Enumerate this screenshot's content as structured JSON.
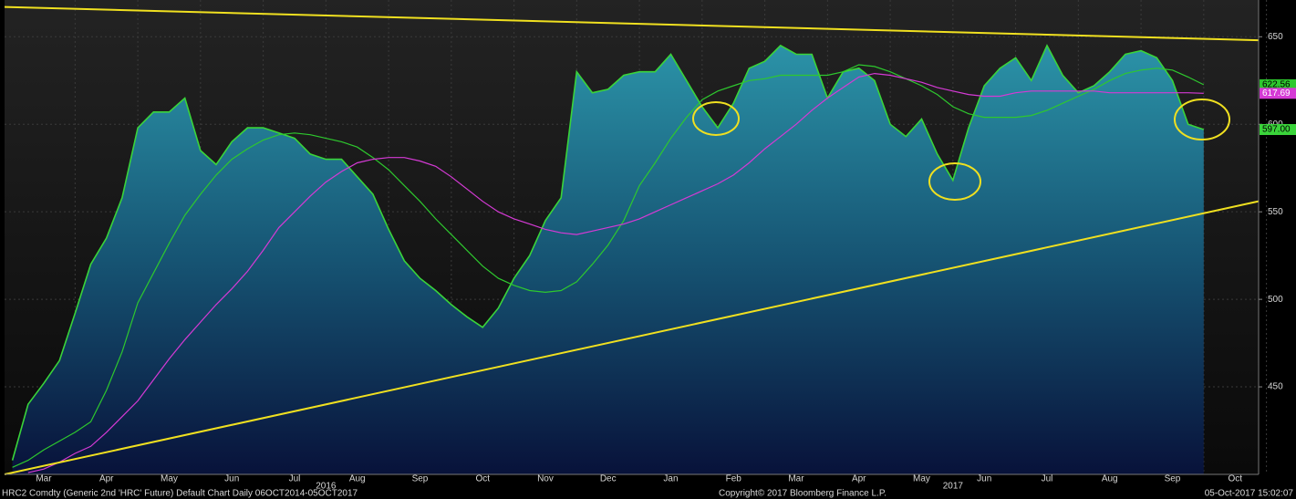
{
  "chart_data": {
    "type": "area",
    "categories": [
      null,
      null,
      "Mar",
      null,
      null,
      null,
      "Apr",
      null,
      null,
      null,
      "May",
      null,
      null,
      null,
      "Jun",
      null,
      null,
      null,
      "Jul",
      null,
      null,
      null,
      "Aug",
      null,
      null,
      null,
      "Sep",
      null,
      null,
      null,
      "Oct",
      null,
      null,
      null,
      "Nov",
      null,
      null,
      null,
      "Dec",
      null,
      null,
      null,
      "Jan",
      null,
      null,
      null,
      "Feb",
      null,
      null,
      null,
      "Mar",
      null,
      null,
      null,
      "Apr",
      null,
      null,
      null,
      "May",
      null,
      null,
      null,
      "Jun",
      null,
      null,
      null,
      "Jul",
      null,
      null,
      null,
      "Aug",
      null,
      null,
      null,
      "Sep",
      null,
      null,
      null,
      "Oct",
      null
    ],
    "years": [
      {
        "label": "2016",
        "category": 20
      },
      {
        "label": "2017",
        "category": 60
      }
    ],
    "ylim": [
      400,
      671
    ],
    "yticks": [
      450,
      500,
      550,
      600,
      650
    ],
    "grid": true,
    "series": [
      {
        "color": "#3ad43a",
        "fill": true,
        "values": [
          408,
          440,
          452,
          465,
          492,
          520,
          535,
          558,
          598,
          607,
          607,
          615,
          585,
          577,
          590,
          598,
          598,
          595,
          592,
          583,
          580,
          580,
          570,
          560,
          540,
          522,
          512,
          505,
          497,
          490,
          484,
          495,
          512,
          525,
          545,
          558,
          630,
          618,
          620,
          628,
          630,
          630,
          640,
          625,
          610,
          598,
          612,
          632,
          636,
          645,
          640,
          640,
          615,
          630,
          632,
          625,
          600,
          593,
          603,
          583,
          568,
          598,
          622,
          632,
          638,
          625,
          645,
          628,
          618,
          622,
          630,
          640,
          642,
          638,
          625,
          600,
          597,
          null,
          null,
          null
        ],
        "value_labels": [
          null,
          null,
          null,
          null,
          null,
          null,
          null,
          null,
          null,
          null,
          null,
          null,
          null,
          null,
          null,
          null,
          null,
          null,
          null,
          null,
          null,
          null,
          null,
          null,
          null,
          null,
          null,
          null,
          null,
          null,
          null,
          null,
          null,
          null,
          null,
          null,
          null,
          null,
          null,
          null,
          null,
          null,
          null,
          null,
          null,
          null,
          null,
          null,
          null,
          null,
          null,
          null,
          null,
          null,
          null,
          null,
          null,
          null,
          null,
          null,
          null,
          null,
          null,
          null,
          null,
          null,
          null,
          null,
          null,
          null,
          null,
          null,
          null,
          null,
          null,
          null,
          "597.00",
          null,
          null,
          null
        ]
      },
      {
        "color": "#2ec82e",
        "fill": false,
        "values": [
          404,
          408,
          414,
          419,
          424,
          430,
          448,
          470,
          498,
          515,
          532,
          548,
          560,
          571,
          580,
          586,
          591,
          594,
          595,
          594,
          592,
          590,
          587,
          581,
          574,
          565,
          556,
          546,
          537,
          528,
          519,
          512,
          508,
          505,
          504,
          505,
          510,
          520,
          531,
          545,
          565,
          578,
          592,
          604,
          614,
          619,
          622,
          625,
          626,
          628,
          628,
          628,
          628,
          630,
          634,
          633,
          630,
          626,
          622,
          617,
          610,
          606,
          604,
          604,
          604,
          605,
          608,
          612,
          616,
          620,
          625,
          629,
          631,
          632,
          631,
          627,
          622.56,
          null,
          null,
          null
        ],
        "value_labels": [
          null,
          null,
          null,
          null,
          null,
          null,
          null,
          null,
          null,
          null,
          null,
          null,
          null,
          null,
          null,
          null,
          null,
          null,
          null,
          null,
          null,
          null,
          null,
          null,
          null,
          null,
          null,
          null,
          null,
          null,
          null,
          null,
          null,
          null,
          null,
          null,
          null,
          null,
          null,
          null,
          null,
          null,
          null,
          null,
          null,
          null,
          null,
          null,
          null,
          null,
          null,
          null,
          null,
          null,
          null,
          null,
          null,
          null,
          null,
          null,
          null,
          null,
          null,
          null,
          null,
          null,
          null,
          null,
          null,
          null,
          null,
          null,
          null,
          null,
          null,
          null,
          "622.56",
          null,
          null,
          null
        ]
      },
      {
        "color": "#d53ad5",
        "fill": false,
        "values": [
          null,
          401,
          403,
          407,
          412,
          416,
          424,
          433,
          442,
          454,
          466,
          477,
          487,
          497,
          506,
          516,
          528,
          541,
          550,
          559,
          567,
          573,
          578,
          580,
          581,
          581,
          579,
          576,
          570,
          563,
          556,
          550,
          546,
          543,
          540,
          538,
          537,
          539,
          541,
          543,
          546,
          550,
          554,
          558,
          562,
          566,
          571,
          578,
          586,
          593,
          600,
          608,
          615,
          621,
          627,
          629,
          628,
          626,
          624,
          621,
          619,
          617,
          616,
          616,
          618,
          619,
          619,
          619,
          619,
          619,
          618,
          618,
          618,
          618,
          618,
          618,
          617.69,
          null,
          null,
          null
        ],
        "value_labels": [
          null,
          null,
          null,
          null,
          null,
          null,
          null,
          null,
          null,
          null,
          null,
          null,
          null,
          null,
          null,
          null,
          null,
          null,
          null,
          null,
          null,
          null,
          null,
          null,
          null,
          null,
          null,
          null,
          null,
          null,
          null,
          null,
          null,
          null,
          null,
          null,
          null,
          null,
          null,
          null,
          null,
          null,
          null,
          null,
          null,
          null,
          null,
          null,
          null,
          null,
          null,
          null,
          null,
          null,
          null,
          null,
          null,
          null,
          null,
          null,
          null,
          null,
          null,
          null,
          null,
          null,
          null,
          null,
          null,
          null,
          null,
          null,
          null,
          null,
          null,
          null,
          "617.69",
          null,
          null,
          null
        ]
      }
    ],
    "trendlines": [
      {
        "color": "#f0e020",
        "values": [
          667,
          648
        ]
      },
      {
        "color": "#f0e020",
        "values": [
          400,
          556
        ]
      }
    ],
    "footer": {
      "left": "HRC2 Comdty (Generic 2nd 'HRC' Future) Default Chart  Daily 06OCT2014-05OCT2017",
      "center": "Copyright© 2017 Bloomberg Finance L.P.",
      "right": "05-Oct-2017 15:02:07"
    }
  }
}
